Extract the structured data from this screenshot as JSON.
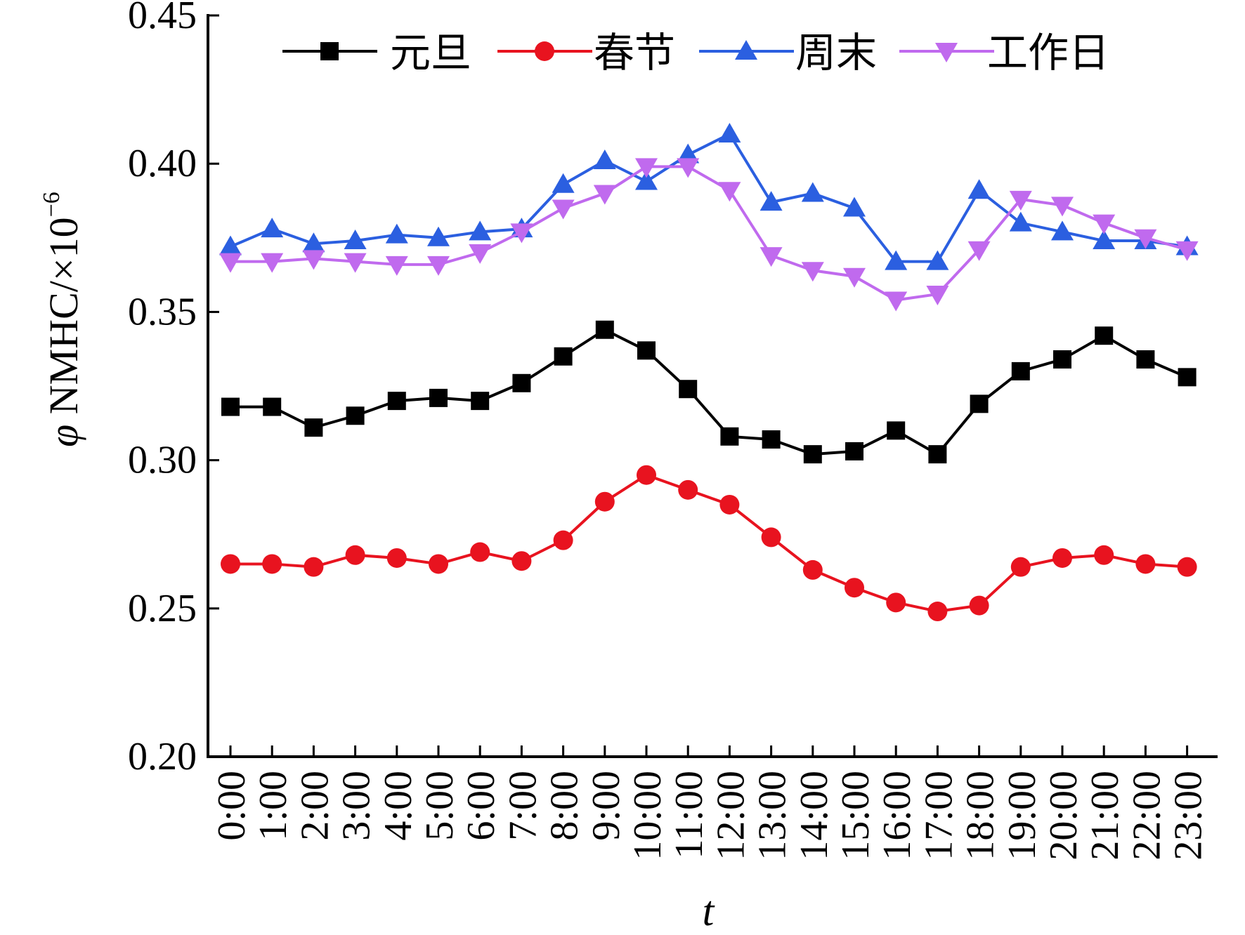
{
  "chart_data": {
    "type": "line",
    "xlabel": "t",
    "ylabel": "φ NMHC/×10⁻⁶",
    "ylabel_parts": {
      "symbol": "φ",
      "text": "NMHC/×10",
      "exponent": "−6"
    },
    "ylim": [
      0.2,
      0.45
    ],
    "yticks": [
      "0.20",
      "0.25",
      "0.30",
      "0.35",
      "0.40",
      "0.45"
    ],
    "ytick_values": [
      0.2,
      0.25,
      0.3,
      0.35,
      0.4,
      0.45
    ],
    "categories": [
      "0:00",
      "1:00",
      "2:00",
      "3:00",
      "4:00",
      "5:00",
      "6:00",
      "7:00",
      "8:00",
      "9:00",
      "10:00",
      "11:00",
      "12:00",
      "13:00",
      "14:00",
      "15:00",
      "16:00",
      "17:00",
      "18:00",
      "19:00",
      "20:00",
      "21:00",
      "22:00",
      "23:00"
    ],
    "grid": false,
    "legend_position": "top",
    "series": [
      {
        "name": "元旦",
        "color": "#000000",
        "marker": "square",
        "values": [
          0.318,
          0.318,
          0.311,
          0.315,
          0.32,
          0.321,
          0.32,
          0.326,
          0.335,
          0.344,
          0.337,
          0.324,
          0.308,
          0.307,
          0.302,
          0.303,
          0.31,
          0.302,
          0.319,
          0.33,
          0.334,
          0.342,
          0.334,
          0.328
        ]
      },
      {
        "name": "春节",
        "color": "#e8131f",
        "marker": "circle",
        "values": [
          0.265,
          0.265,
          0.264,
          0.268,
          0.267,
          0.265,
          0.269,
          0.266,
          0.273,
          0.286,
          0.295,
          0.29,
          0.285,
          0.274,
          0.263,
          0.257,
          0.252,
          0.249,
          0.251,
          0.264,
          0.267,
          0.268,
          0.265,
          0.264
        ]
      },
      {
        "name": "周末",
        "color": "#2b5fe0",
        "marker": "triangle-up",
        "values": [
          0.372,
          0.378,
          0.373,
          0.374,
          0.376,
          0.375,
          0.377,
          0.378,
          0.393,
          0.401,
          0.394,
          0.403,
          0.41,
          0.387,
          0.39,
          0.385,
          0.367,
          0.367,
          0.391,
          0.38,
          0.377,
          0.374,
          0.374,
          0.372
        ]
      },
      {
        "name": "工作日",
        "color": "#c06aee",
        "marker": "triangle-down",
        "values": [
          0.367,
          0.367,
          0.368,
          0.367,
          0.366,
          0.366,
          0.37,
          0.377,
          0.385,
          0.39,
          0.399,
          0.399,
          0.391,
          0.369,
          0.364,
          0.362,
          0.354,
          0.356,
          0.371,
          0.388,
          0.386,
          0.38,
          0.375,
          0.371
        ]
      }
    ]
  }
}
